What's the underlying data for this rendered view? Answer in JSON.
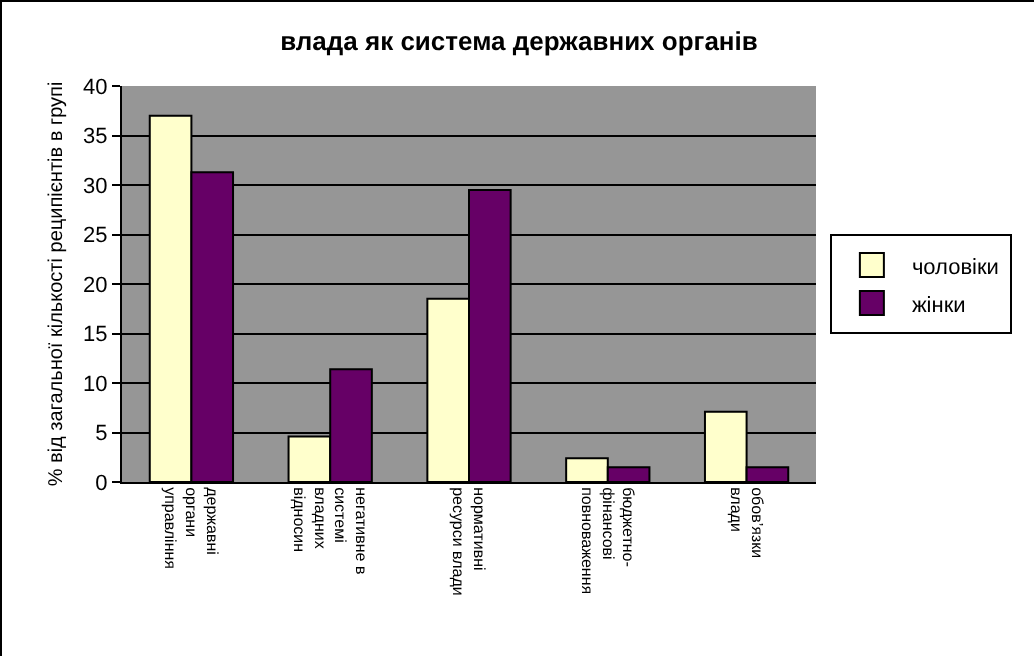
{
  "chart_data": {
    "type": "bar",
    "title": "влада як система державних органів",
    "ylabel": "% від загальної кількості реципієнтів в групі",
    "categories": [
      "державні органи управління",
      "негативне в системі владних відносин",
      "нормативні ресурси влади",
      "бюджетно-фінансові повноваження",
      "обов’язки влади"
    ],
    "series": [
      {
        "name": "чоловіки",
        "color": "#ffffcc",
        "values": [
          37.0,
          4.6,
          18.5,
          2.4,
          7.1
        ]
      },
      {
        "name": "жінки",
        "color": "#660066",
        "values": [
          31.3,
          11.4,
          29.5,
          1.5,
          1.5
        ]
      }
    ],
    "ylim": [
      0,
      40
    ],
    "yticks": [
      0,
      5,
      10,
      15,
      20,
      25,
      30,
      35,
      40
    ],
    "grid": "y",
    "legend": "right"
  }
}
